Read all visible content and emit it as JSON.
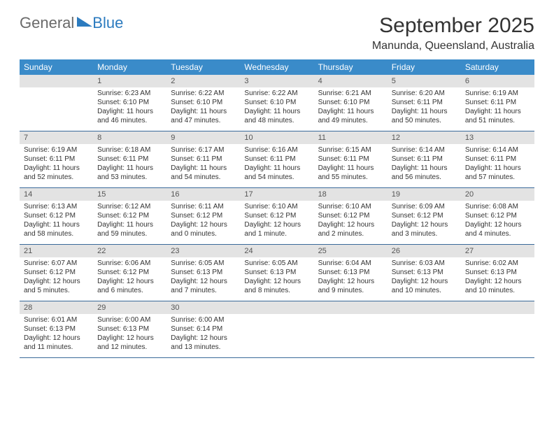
{
  "logo": {
    "textA": "General",
    "textB": "Blue"
  },
  "title": "September 2025",
  "location": "Manunda, Queensland, Australia",
  "colors": {
    "header_bg": "#3a8bc9",
    "header_text": "#ffffff",
    "daynum_bg": "#e3e3e3",
    "row_border": "#3a6a9a",
    "logo_gray": "#6a6a6a",
    "logo_blue": "#2c7bbf"
  },
  "weekdays": [
    "Sunday",
    "Monday",
    "Tuesday",
    "Wednesday",
    "Thursday",
    "Friday",
    "Saturday"
  ],
  "rows": [
    [
      {
        "num": ""
      },
      {
        "num": "1",
        "sunrise": "Sunrise: 6:23 AM",
        "sunset": "Sunset: 6:10 PM",
        "dayA": "Daylight: 11 hours",
        "dayB": "and 46 minutes."
      },
      {
        "num": "2",
        "sunrise": "Sunrise: 6:22 AM",
        "sunset": "Sunset: 6:10 PM",
        "dayA": "Daylight: 11 hours",
        "dayB": "and 47 minutes."
      },
      {
        "num": "3",
        "sunrise": "Sunrise: 6:22 AM",
        "sunset": "Sunset: 6:10 PM",
        "dayA": "Daylight: 11 hours",
        "dayB": "and 48 minutes."
      },
      {
        "num": "4",
        "sunrise": "Sunrise: 6:21 AM",
        "sunset": "Sunset: 6:10 PM",
        "dayA": "Daylight: 11 hours",
        "dayB": "and 49 minutes."
      },
      {
        "num": "5",
        "sunrise": "Sunrise: 6:20 AM",
        "sunset": "Sunset: 6:11 PM",
        "dayA": "Daylight: 11 hours",
        "dayB": "and 50 minutes."
      },
      {
        "num": "6",
        "sunrise": "Sunrise: 6:19 AM",
        "sunset": "Sunset: 6:11 PM",
        "dayA": "Daylight: 11 hours",
        "dayB": "and 51 minutes."
      }
    ],
    [
      {
        "num": "7",
        "sunrise": "Sunrise: 6:19 AM",
        "sunset": "Sunset: 6:11 PM",
        "dayA": "Daylight: 11 hours",
        "dayB": "and 52 minutes."
      },
      {
        "num": "8",
        "sunrise": "Sunrise: 6:18 AM",
        "sunset": "Sunset: 6:11 PM",
        "dayA": "Daylight: 11 hours",
        "dayB": "and 53 minutes."
      },
      {
        "num": "9",
        "sunrise": "Sunrise: 6:17 AM",
        "sunset": "Sunset: 6:11 PM",
        "dayA": "Daylight: 11 hours",
        "dayB": "and 54 minutes."
      },
      {
        "num": "10",
        "sunrise": "Sunrise: 6:16 AM",
        "sunset": "Sunset: 6:11 PM",
        "dayA": "Daylight: 11 hours",
        "dayB": "and 54 minutes."
      },
      {
        "num": "11",
        "sunrise": "Sunrise: 6:15 AM",
        "sunset": "Sunset: 6:11 PM",
        "dayA": "Daylight: 11 hours",
        "dayB": "and 55 minutes."
      },
      {
        "num": "12",
        "sunrise": "Sunrise: 6:14 AM",
        "sunset": "Sunset: 6:11 PM",
        "dayA": "Daylight: 11 hours",
        "dayB": "and 56 minutes."
      },
      {
        "num": "13",
        "sunrise": "Sunrise: 6:14 AM",
        "sunset": "Sunset: 6:11 PM",
        "dayA": "Daylight: 11 hours",
        "dayB": "and 57 minutes."
      }
    ],
    [
      {
        "num": "14",
        "sunrise": "Sunrise: 6:13 AM",
        "sunset": "Sunset: 6:12 PM",
        "dayA": "Daylight: 11 hours",
        "dayB": "and 58 minutes."
      },
      {
        "num": "15",
        "sunrise": "Sunrise: 6:12 AM",
        "sunset": "Sunset: 6:12 PM",
        "dayA": "Daylight: 11 hours",
        "dayB": "and 59 minutes."
      },
      {
        "num": "16",
        "sunrise": "Sunrise: 6:11 AM",
        "sunset": "Sunset: 6:12 PM",
        "dayA": "Daylight: 12 hours",
        "dayB": "and 0 minutes."
      },
      {
        "num": "17",
        "sunrise": "Sunrise: 6:10 AM",
        "sunset": "Sunset: 6:12 PM",
        "dayA": "Daylight: 12 hours",
        "dayB": "and 1 minute."
      },
      {
        "num": "18",
        "sunrise": "Sunrise: 6:10 AM",
        "sunset": "Sunset: 6:12 PM",
        "dayA": "Daylight: 12 hours",
        "dayB": "and 2 minutes."
      },
      {
        "num": "19",
        "sunrise": "Sunrise: 6:09 AM",
        "sunset": "Sunset: 6:12 PM",
        "dayA": "Daylight: 12 hours",
        "dayB": "and 3 minutes."
      },
      {
        "num": "20",
        "sunrise": "Sunrise: 6:08 AM",
        "sunset": "Sunset: 6:12 PM",
        "dayA": "Daylight: 12 hours",
        "dayB": "and 4 minutes."
      }
    ],
    [
      {
        "num": "21",
        "sunrise": "Sunrise: 6:07 AM",
        "sunset": "Sunset: 6:12 PM",
        "dayA": "Daylight: 12 hours",
        "dayB": "and 5 minutes."
      },
      {
        "num": "22",
        "sunrise": "Sunrise: 6:06 AM",
        "sunset": "Sunset: 6:12 PM",
        "dayA": "Daylight: 12 hours",
        "dayB": "and 6 minutes."
      },
      {
        "num": "23",
        "sunrise": "Sunrise: 6:05 AM",
        "sunset": "Sunset: 6:13 PM",
        "dayA": "Daylight: 12 hours",
        "dayB": "and 7 minutes."
      },
      {
        "num": "24",
        "sunrise": "Sunrise: 6:05 AM",
        "sunset": "Sunset: 6:13 PM",
        "dayA": "Daylight: 12 hours",
        "dayB": "and 8 minutes."
      },
      {
        "num": "25",
        "sunrise": "Sunrise: 6:04 AM",
        "sunset": "Sunset: 6:13 PM",
        "dayA": "Daylight: 12 hours",
        "dayB": "and 9 minutes."
      },
      {
        "num": "26",
        "sunrise": "Sunrise: 6:03 AM",
        "sunset": "Sunset: 6:13 PM",
        "dayA": "Daylight: 12 hours",
        "dayB": "and 10 minutes."
      },
      {
        "num": "27",
        "sunrise": "Sunrise: 6:02 AM",
        "sunset": "Sunset: 6:13 PM",
        "dayA": "Daylight: 12 hours",
        "dayB": "and 10 minutes."
      }
    ],
    [
      {
        "num": "28",
        "sunrise": "Sunrise: 6:01 AM",
        "sunset": "Sunset: 6:13 PM",
        "dayA": "Daylight: 12 hours",
        "dayB": "and 11 minutes."
      },
      {
        "num": "29",
        "sunrise": "Sunrise: 6:00 AM",
        "sunset": "Sunset: 6:13 PM",
        "dayA": "Daylight: 12 hours",
        "dayB": "and 12 minutes."
      },
      {
        "num": "30",
        "sunrise": "Sunrise: 6:00 AM",
        "sunset": "Sunset: 6:14 PM",
        "dayA": "Daylight: 12 hours",
        "dayB": "and 13 minutes."
      },
      {
        "num": ""
      },
      {
        "num": ""
      },
      {
        "num": ""
      },
      {
        "num": ""
      }
    ]
  ]
}
